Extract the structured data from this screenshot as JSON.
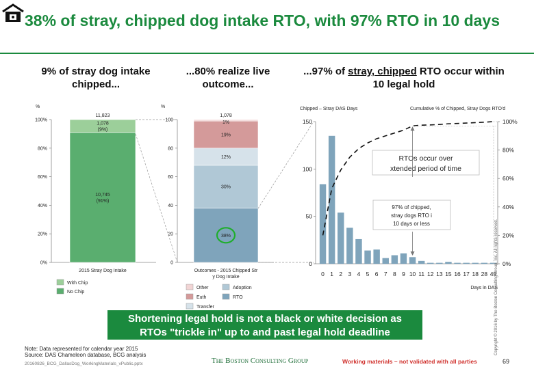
{
  "header": {
    "title": "38% of stray, chipped dog intake RTO, with 97% RTO in 10 days"
  },
  "columns": {
    "left_heading": "9% of stray dog intake chipped...",
    "mid_heading": "...80% realize live outcome...",
    "right_heading_pre": "...97% of ",
    "right_heading_underlined": "stray, chipped",
    "right_heading_post": " RTO occur within 10 legal hold"
  },
  "banner": {
    "line1": "Shortening legal hold is not a black or white decision as",
    "line2": "RTOs \"trickle in\" up to and past legal hold deadline"
  },
  "footer": {
    "note": "Note: Data represented for calendar year 2015",
    "source": "Source: DAS Chameleon database, BCG analysis",
    "file": "20160826_BCG_DallasDog_WorkingMaterials_vPublic.pptx",
    "brand": "The Boston Consulting Group",
    "disclaimer": "Working materials – not validated with all parties",
    "page_number": "69",
    "copyright": "Copyright © 2016 by The Boston Consulting Group, Inc. All rights reserved."
  },
  "colors": {
    "brand_green": "#1b8a3e",
    "with_chip": "#9ccf9a",
    "no_chip": "#5aae6f",
    "other": "#f2d5d5",
    "euth": "#d49a9a",
    "transfer": "#d6e2ea",
    "adoption": "#b0c8d6",
    "rto": "#7fa4bb",
    "bars": "#7fa4bb"
  },
  "chart_data": [
    {
      "type": "bar",
      "stacked": true,
      "unit_label": "%",
      "categories": [
        "2015 Stray Dog Intake"
      ],
      "ylim": [
        0,
        100
      ],
      "yticks": [
        "0%",
        "20%",
        "40%",
        "60%",
        "80%",
        "100%"
      ],
      "total_label": "11,823",
      "series": [
        {
          "name": "No Chip",
          "values": [
            91
          ],
          "label": "10,745\n(91%)"
        },
        {
          "name": "With Chip",
          "values": [
            9
          ],
          "label": "1,078\n(9%)"
        }
      ],
      "legend": [
        "With Chip",
        "No Chip"
      ]
    },
    {
      "type": "bar",
      "stacked": true,
      "unit_label": "%",
      "categories": [
        "Outcomes - 2015 Chipped Stray Dog Intake"
      ],
      "ylim": [
        0,
        100
      ],
      "yticks": [
        "0",
        "20",
        "40",
        "60",
        "80",
        "100"
      ],
      "total_label": "1,078",
      "series": [
        {
          "name": "RTO",
          "values": [
            38
          ],
          "label": "38%"
        },
        {
          "name": "Adoption",
          "values": [
            30
          ],
          "label": "30%"
        },
        {
          "name": "Transfer",
          "values": [
            12
          ],
          "label": "12%"
        },
        {
          "name": "Euth",
          "values": [
            19
          ],
          "label": "19%"
        },
        {
          "name": "Other",
          "values": [
            1
          ],
          "label": "1%"
        }
      ],
      "legend": [
        "Other",
        "Adoption",
        "Euth",
        "RTO",
        "Transfer"
      ],
      "highlight": "RTO"
    },
    {
      "type": "bar",
      "left_axis_label": "Chipped – Stray DAS Days",
      "right_axis_label": "Cumulative % of Chipped, Stray Dogs RTO'd",
      "xlabel": "Days in DAS",
      "categories": [
        "0",
        "1",
        "2",
        "3",
        "4",
        "5",
        "6",
        "7",
        "8",
        "9",
        "10",
        "11",
        "12",
        "13",
        "15",
        "16",
        "17",
        "18",
        "28",
        "49"
      ],
      "ylim": [
        0,
        150
      ],
      "yticks": [
        "0",
        "50",
        "100",
        "150"
      ],
      "y2lim": [
        0,
        100
      ],
      "y2ticks": [
        "0%",
        "20%",
        "40%",
        "60%",
        "80%",
        "100%"
      ],
      "values": [
        84,
        135,
        54,
        38,
        26,
        14,
        15,
        6,
        9,
        11,
        7,
        3,
        1,
        1,
        2,
        1,
        1,
        1,
        1,
        1
      ],
      "cumulative_pct": [
        20,
        53,
        66,
        75,
        81,
        85,
        88,
        90,
        92,
        94,
        97,
        97.5,
        97.7,
        98,
        98.5,
        98.7,
        99,
        99.3,
        99.6,
        100
      ],
      "annotations": [
        {
          "text": "RTOs occur over extended period of time"
        },
        {
          "text": "97% of chipped, stray dogs RTO in 10 days or less"
        }
      ]
    }
  ]
}
